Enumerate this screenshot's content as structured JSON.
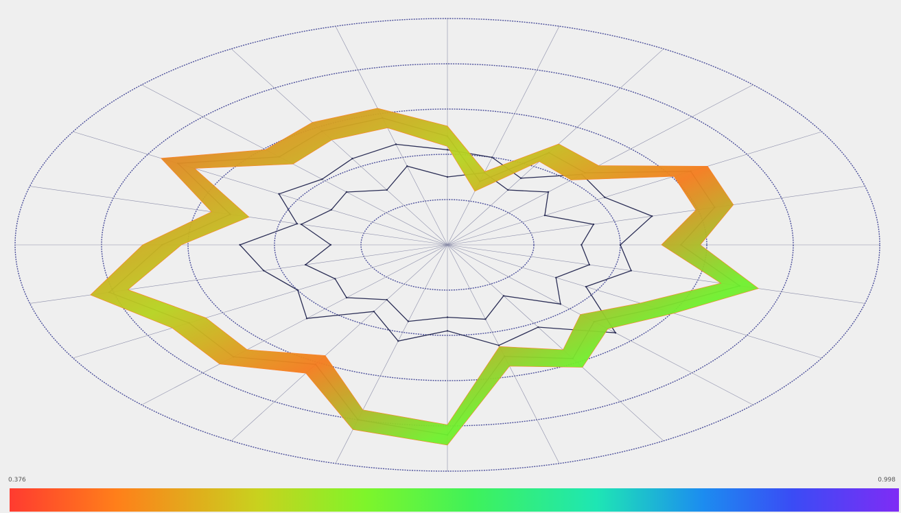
{
  "chart_data": {
    "type": "radar",
    "view": "3d-perspective",
    "num_spokes": 24,
    "radial_range": [
      0,
      1
    ],
    "rings": [
      0.2,
      0.4,
      0.6,
      0.8,
      1.0
    ],
    "grid": true,
    "series": [
      {
        "values": [
          0.48,
          0.29,
          0.47,
          0.45,
          0.65,
          0.64,
          0.54,
          0.7,
          0.56,
          0.48,
          0.58,
          0.51,
          0.84,
          0.8,
          0.61,
          0.7,
          0.69,
          0.81,
          0.66,
          0.52,
          0.72,
          0.55,
          0.58,
          0.58
        ]
      },
      {
        "values": [
          0.42,
          0.4,
          0.34,
          0.44,
          0.42,
          0.49,
          0.4,
          0.44,
          0.37,
          0.55,
          0.42,
          0.46,
          0.38,
          0.44,
          0.34,
          0.46,
          0.4,
          0.44,
          0.48,
          0.36,
          0.45,
          0.41,
          0.44,
          0.46
        ]
      },
      {
        "values": [
          0.3,
          0.33,
          0.28,
          0.33,
          0.26,
          0.35,
          0.31,
          0.34,
          0.29,
          0.37,
          0.26,
          0.34,
          0.32,
          0.35,
          0.28,
          0.33,
          0.3,
          0.34,
          0.27,
          0.35,
          0.31,
          0.33,
          0.28,
          0.36
        ]
      }
    ],
    "highlight_series_index": 0,
    "colorbar": {
      "min_label": "0.376",
      "max_label": "0.998",
      "colors": [
        "#ff3b30",
        "#ff7f1a",
        "#c8d21e",
        "#7ef52a",
        "#3ff25a",
        "#1ee6b4",
        "#1c8cf0",
        "#3a4cf5",
        "#7f2cf5"
      ]
    }
  }
}
